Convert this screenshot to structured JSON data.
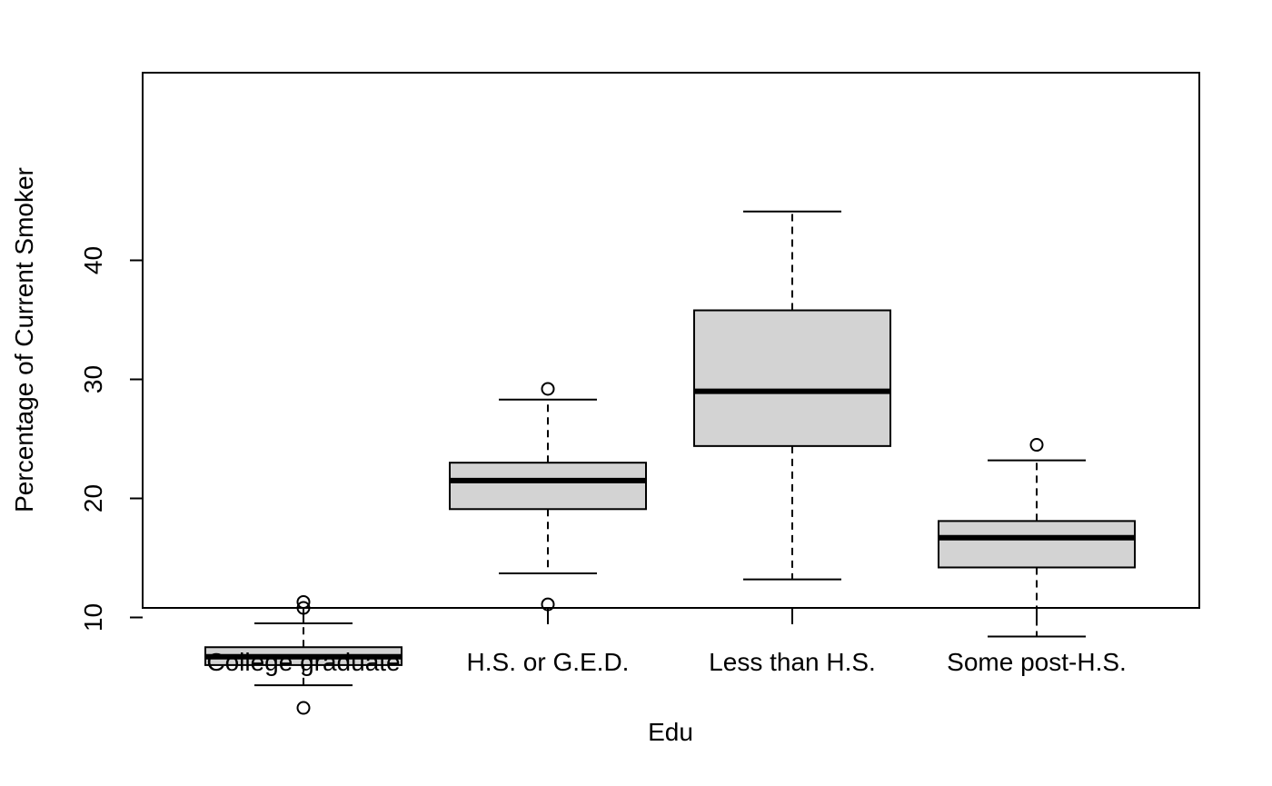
{
  "chart_data": {
    "type": "box",
    "title": "",
    "xlabel": "Edu",
    "ylabel": "Percentage of Current Smoker",
    "ylim": [
      1.4,
      46.2
    ],
    "yticks": [
      10,
      20,
      30,
      40
    ],
    "categories": [
      "College graduate",
      "H.S. or G.E.D.",
      "Less than H.S.",
      "Some post-H.S."
    ],
    "boxes": [
      {
        "category": "College graduate",
        "whisker_low": 4.3,
        "q1": 6.0,
        "median": 6.7,
        "q3": 7.5,
        "whisker_high": 9.5,
        "outliers": [
          2.4,
          10.8,
          11.3
        ]
      },
      {
        "category": "H.S. or G.E.D.",
        "whisker_low": 13.7,
        "q1": 19.1,
        "median": 21.5,
        "q3": 23.0,
        "whisker_high": 28.3,
        "outliers": [
          11.1,
          29.2
        ]
      },
      {
        "category": "Less than H.S.",
        "whisker_low": 13.2,
        "q1": 24.4,
        "median": 29.0,
        "q3": 35.8,
        "whisker_high": 44.1,
        "outliers": []
      },
      {
        "category": "Some post-H.S.",
        "whisker_low": 8.4,
        "q1": 14.2,
        "median": 16.7,
        "q3": 18.1,
        "whisker_high": 23.2,
        "outliers": [
          24.5
        ]
      }
    ],
    "colors": {
      "box_fill": "#d3d3d3",
      "stroke": "#000000",
      "background": "#ffffff"
    },
    "grid": false,
    "legend": "none"
  }
}
